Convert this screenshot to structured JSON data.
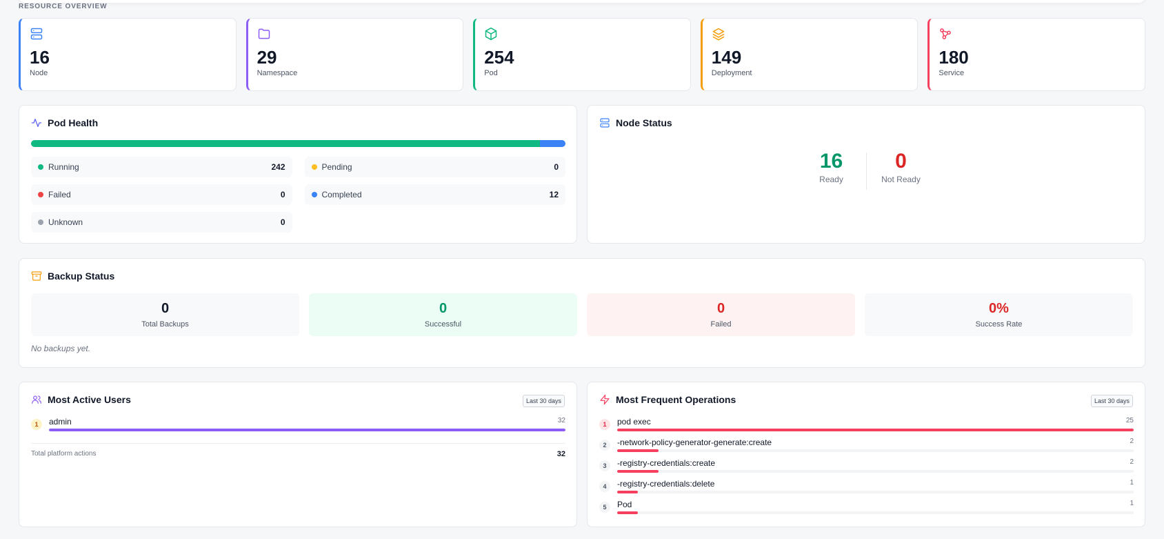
{
  "section_label": "RESOURCE OVERVIEW",
  "resources": [
    {
      "count": "16",
      "label": "Node",
      "icon": "server-icon",
      "color": "#3b82f6"
    },
    {
      "count": "29",
      "label": "Namespace",
      "icon": "folder-icon",
      "color": "#8b5cf6"
    },
    {
      "count": "254",
      "label": "Pod",
      "icon": "cube-icon",
      "color": "#10b981"
    },
    {
      "count": "149",
      "label": "Deployment",
      "icon": "layers-icon",
      "color": "#f59e0b"
    },
    {
      "count": "180",
      "label": "Service",
      "icon": "network-icon",
      "color": "#f43f5e"
    }
  ],
  "pod_health": {
    "title": "Pod Health",
    "total": 254,
    "statuses": [
      {
        "label": "Running",
        "value": "242",
        "color": "#10b981"
      },
      {
        "label": "Pending",
        "value": "0",
        "color": "#fbbf24"
      },
      {
        "label": "Failed",
        "value": "0",
        "color": "#ef4444"
      },
      {
        "label": "Completed",
        "value": "12",
        "color": "#3b82f6"
      },
      {
        "label": "Unknown",
        "value": "0",
        "color": "#9ca3af"
      }
    ]
  },
  "node_status": {
    "title": "Node Status",
    "ready": {
      "value": "16",
      "label": "Ready",
      "color": "#059669"
    },
    "not_ready": {
      "value": "0",
      "label": "Not Ready",
      "color": "#dc2626"
    }
  },
  "backup_status": {
    "title": "Backup Status",
    "stats": [
      {
        "value": "0",
        "label": "Total Backups",
        "bg": "#f8f9fb",
        "color": "#111827"
      },
      {
        "value": "0",
        "label": "Successful",
        "bg": "#ecfdf5",
        "color": "#059669"
      },
      {
        "value": "0",
        "label": "Failed",
        "bg": "#fef2f2",
        "color": "#dc2626"
      },
      {
        "value": "0%",
        "label": "Success Rate",
        "bg": "#f8f9fb",
        "color": "#dc2626"
      }
    ],
    "empty_note": "No backups yet."
  },
  "active_users": {
    "title": "Most Active Users",
    "range": "Last 30 days",
    "items": [
      {
        "rank": "1",
        "name": "admin",
        "value": "32",
        "fraction": 1.0
      }
    ],
    "total_label": "Total platform actions",
    "total_value": "32"
  },
  "frequent_ops": {
    "title": "Most Frequent Operations",
    "range": "Last 30 days",
    "items": [
      {
        "rank": "1",
        "name": "pod exec",
        "value": "25",
        "fraction": 1.0
      },
      {
        "rank": "2",
        "name": "-network-policy-generator-generate:create",
        "value": "2",
        "fraction": 0.08
      },
      {
        "rank": "3",
        "name": "-registry-credentials:create",
        "value": "2",
        "fraction": 0.08
      },
      {
        "rank": "4",
        "name": "-registry-credentials:delete",
        "value": "1",
        "fraction": 0.04
      },
      {
        "rank": "5",
        "name": "Pod",
        "value": "1",
        "fraction": 0.04
      }
    ]
  }
}
